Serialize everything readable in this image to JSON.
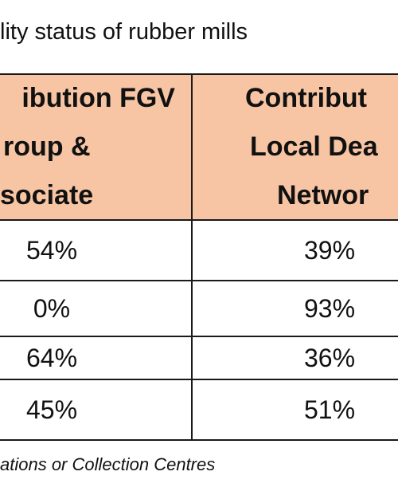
{
  "title": "lity status of rubber mills",
  "table": {
    "headers": [
      [
        "ibution FGV",
        "roup &",
        "sociate"
      ],
      [
        "Contribut",
        "Local Dea",
        "Networ"
      ]
    ],
    "rows": [
      [
        "54%",
        "39%"
      ],
      [
        "0%",
        "93%"
      ],
      [
        "64%",
        "36%"
      ],
      [
        "45%",
        "51%"
      ]
    ]
  },
  "footnote": "ations or Collection Centres",
  "colors": {
    "header_background": "#f7c5a3",
    "grid_lines": "#1a1a1a",
    "text": "#111111"
  }
}
